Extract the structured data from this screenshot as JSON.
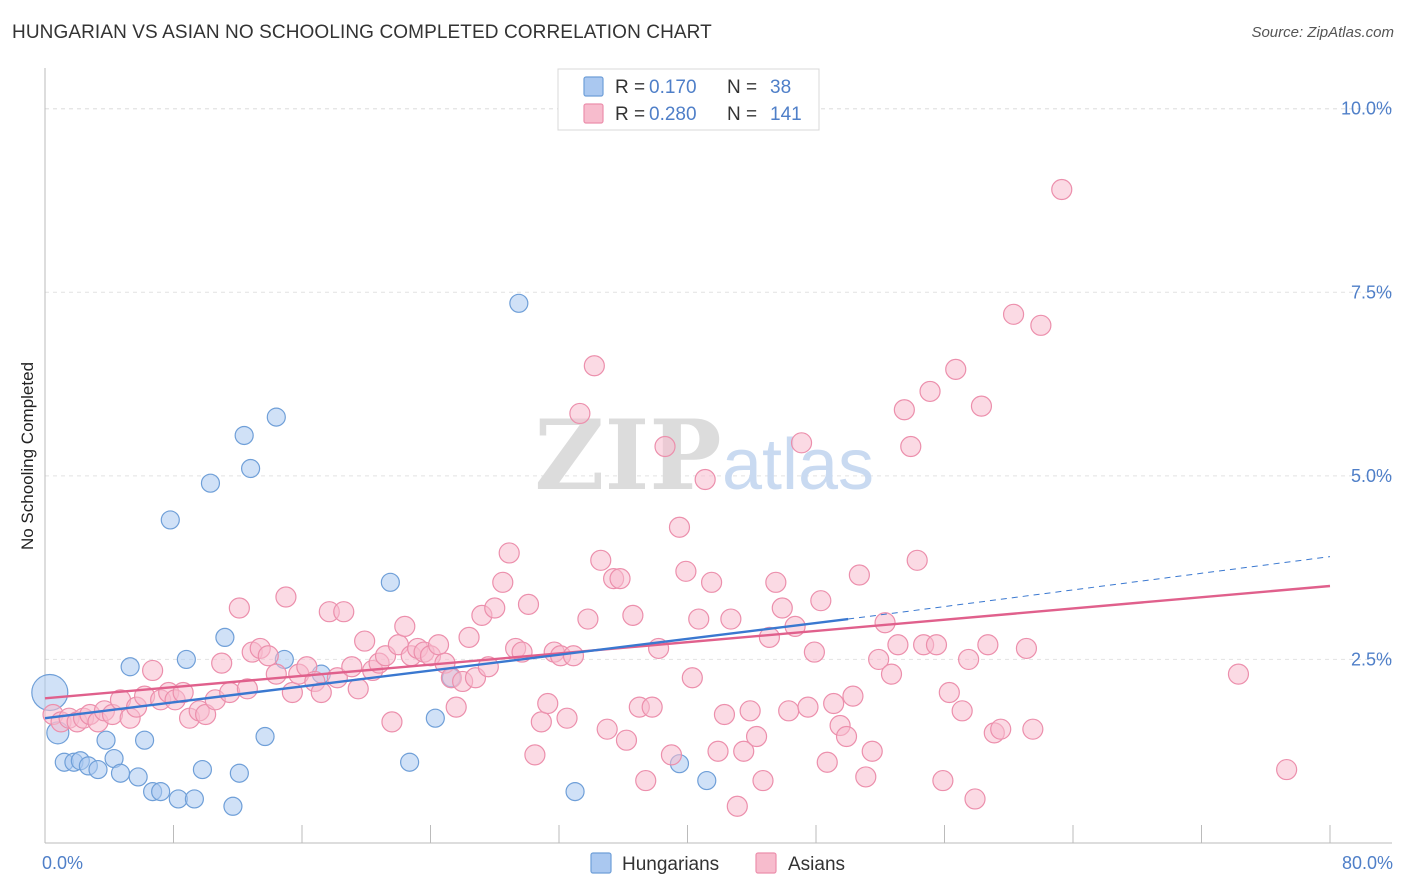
{
  "chart_data": {
    "type": "scatter",
    "title": "HUNGARIAN VS ASIAN NO SCHOOLING COMPLETED CORRELATION CHART",
    "source": "Source: ZipAtlas.com",
    "xlabel": "",
    "ylabel": "No Schooling Completed",
    "xlim": [
      0,
      80
    ],
    "ylim": [
      0,
      10.5
    ],
    "x_tick_labels": [
      "0.0%",
      "80.0%"
    ],
    "y_ticks": [
      2.5,
      5.0,
      7.5,
      10.0
    ],
    "y_tick_labels": [
      "2.5%",
      "5.0%",
      "7.5%",
      "10.0%"
    ],
    "grid": true,
    "watermark": {
      "zip": "ZIP",
      "atlas": "atlas"
    },
    "legend_stats": [
      {
        "r_label": "R = ",
        "r_value": "0.170",
        "n_label": "N = ",
        "n_value": "38"
      },
      {
        "r_label": "R = ",
        "r_value": "0.280",
        "n_label": "N = ",
        "n_value": "141"
      }
    ],
    "colors": {
      "hungarian_fill": "#aac8f0",
      "hungarian_stroke": "#6f9fd8",
      "hungarian_line": "#3a78d0",
      "asian_fill": "#f7bccd",
      "asian_stroke": "#ec8fac",
      "asian_line": "#e0608c",
      "value_text": "#4f7fc8",
      "axis_text": "#4f7fc8"
    },
    "series": [
      {
        "name": "Hungarians",
        "trend": {
          "x0": 0,
          "y0": 1.7,
          "x1": 50,
          "y1": 3.05,
          "dash_to_x": 80,
          "dash_to_y": 3.9
        },
        "points": [
          [
            0.3,
            2.05,
            18
          ],
          [
            0.8,
            1.5,
            11
          ],
          [
            1.2,
            1.1,
            9
          ],
          [
            1.8,
            1.1,
            9
          ],
          [
            2.2,
            1.12,
            9
          ],
          [
            2.7,
            1.05,
            9
          ],
          [
            3.3,
            1.0,
            9
          ],
          [
            3.8,
            1.4,
            9
          ],
          [
            4.3,
            1.15,
            9
          ],
          [
            4.7,
            0.95,
            9
          ],
          [
            5.3,
            2.4,
            9
          ],
          [
            5.8,
            0.9,
            9
          ],
          [
            6.2,
            1.4,
            9
          ],
          [
            6.7,
            0.7,
            9
          ],
          [
            7.2,
            0.7,
            9
          ],
          [
            7.8,
            4.4,
            9
          ],
          [
            8.3,
            0.6,
            9
          ],
          [
            8.8,
            2.5,
            9
          ],
          [
            9.3,
            0.6,
            9
          ],
          [
            9.8,
            1.0,
            9
          ],
          [
            10.3,
            4.9,
            9
          ],
          [
            11.2,
            2.8,
            9
          ],
          [
            11.7,
            0.5,
            9
          ],
          [
            12.1,
            0.95,
            9
          ],
          [
            12.4,
            5.55,
            9
          ],
          [
            12.8,
            5.1,
            9
          ],
          [
            13.7,
            1.45,
            9
          ],
          [
            14.4,
            5.8,
            9
          ],
          [
            14.9,
            2.5,
            9
          ],
          [
            17.2,
            2.3,
            9
          ],
          [
            21.5,
            3.55,
            9
          ],
          [
            22.7,
            1.1,
            9
          ],
          [
            24.3,
            1.7,
            9
          ],
          [
            25.3,
            2.25,
            9
          ],
          [
            29.5,
            7.35,
            9
          ],
          [
            33.0,
            0.7,
            9
          ],
          [
            39.5,
            1.08,
            9
          ],
          [
            41.2,
            0.85,
            9
          ]
        ]
      },
      {
        "name": "Asians",
        "trend": {
          "x0": 0,
          "y0": 1.97,
          "x1": 80,
          "y1": 3.5
        },
        "points": [
          [
            0.5,
            1.75,
            10
          ],
          [
            1.0,
            1.65,
            10
          ],
          [
            1.5,
            1.7,
            10
          ],
          [
            2.0,
            1.65,
            10
          ],
          [
            2.4,
            1.7,
            10
          ],
          [
            2.8,
            1.75,
            10
          ],
          [
            3.3,
            1.65,
            10
          ],
          [
            3.7,
            1.8,
            10
          ],
          [
            4.2,
            1.75,
            10
          ],
          [
            4.7,
            1.95,
            10
          ],
          [
            5.3,
            1.7,
            10
          ],
          [
            5.7,
            1.85,
            10
          ],
          [
            6.2,
            2.0,
            10
          ],
          [
            6.7,
            2.35,
            10
          ],
          [
            7.2,
            1.95,
            10
          ],
          [
            7.7,
            2.05,
            10
          ],
          [
            8.1,
            1.95,
            10
          ],
          [
            8.6,
            2.05,
            10
          ],
          [
            9.0,
            1.7,
            10
          ],
          [
            9.6,
            1.8,
            10
          ],
          [
            10.0,
            1.75,
            10
          ],
          [
            10.6,
            1.95,
            10
          ],
          [
            11.0,
            2.45,
            10
          ],
          [
            11.5,
            2.05,
            10
          ],
          [
            12.1,
            3.2,
            10
          ],
          [
            12.6,
            2.1,
            10
          ],
          [
            12.9,
            2.6,
            10
          ],
          [
            13.4,
            2.65,
            10
          ],
          [
            13.9,
            2.55,
            10
          ],
          [
            14.4,
            2.3,
            10
          ],
          [
            15.0,
            3.35,
            10
          ],
          [
            15.4,
            2.05,
            10
          ],
          [
            15.8,
            2.3,
            10
          ],
          [
            16.3,
            2.4,
            10
          ],
          [
            16.8,
            2.2,
            10
          ],
          [
            17.2,
            2.05,
            10
          ],
          [
            17.7,
            3.15,
            10
          ],
          [
            18.2,
            2.25,
            10
          ],
          [
            18.6,
            3.15,
            10
          ],
          [
            19.1,
            2.4,
            10
          ],
          [
            19.5,
            2.1,
            10
          ],
          [
            19.9,
            2.75,
            10
          ],
          [
            20.4,
            2.35,
            10
          ],
          [
            20.8,
            2.45,
            10
          ],
          [
            21.2,
            2.55,
            10
          ],
          [
            21.6,
            1.65,
            10
          ],
          [
            22.0,
            2.7,
            10
          ],
          [
            22.4,
            2.95,
            10
          ],
          [
            22.8,
            2.55,
            10
          ],
          [
            23.2,
            2.65,
            10
          ],
          [
            23.6,
            2.6,
            10
          ],
          [
            24.0,
            2.55,
            10
          ],
          [
            24.5,
            2.7,
            10
          ],
          [
            24.9,
            2.45,
            10
          ],
          [
            25.3,
            2.25,
            10
          ],
          [
            25.6,
            1.85,
            10
          ],
          [
            26.0,
            2.2,
            10
          ],
          [
            26.4,
            2.8,
            10
          ],
          [
            26.8,
            2.25,
            10
          ],
          [
            27.2,
            3.1,
            10
          ],
          [
            27.6,
            2.4,
            10
          ],
          [
            28.0,
            3.2,
            10
          ],
          [
            28.5,
            3.55,
            10
          ],
          [
            28.9,
            3.95,
            10
          ],
          [
            29.3,
            2.65,
            10
          ],
          [
            29.7,
            2.6,
            10
          ],
          [
            30.1,
            3.25,
            10
          ],
          [
            30.5,
            1.2,
            10
          ],
          [
            30.9,
            1.65,
            10
          ],
          [
            31.3,
            1.9,
            10
          ],
          [
            31.7,
            2.6,
            10
          ],
          [
            32.1,
            2.55,
            10
          ],
          [
            32.5,
            1.7,
            10
          ],
          [
            32.9,
            2.55,
            10
          ],
          [
            33.3,
            5.85,
            10
          ],
          [
            33.8,
            3.05,
            10
          ],
          [
            34.2,
            6.5,
            10
          ],
          [
            34.6,
            3.85,
            10
          ],
          [
            35.0,
            1.55,
            10
          ],
          [
            35.4,
            3.6,
            10
          ],
          [
            35.8,
            3.6,
            10
          ],
          [
            36.2,
            1.4,
            10
          ],
          [
            36.6,
            3.1,
            10
          ],
          [
            37.0,
            1.85,
            10
          ],
          [
            37.4,
            0.85,
            10
          ],
          [
            37.8,
            1.85,
            10
          ],
          [
            38.2,
            2.65,
            10
          ],
          [
            38.6,
            5.4,
            10
          ],
          [
            39.0,
            1.2,
            10
          ],
          [
            39.5,
            4.3,
            10
          ],
          [
            39.9,
            3.7,
            10
          ],
          [
            40.3,
            2.25,
            10
          ],
          [
            40.7,
            3.05,
            10
          ],
          [
            41.1,
            4.95,
            10
          ],
          [
            41.5,
            3.55,
            10
          ],
          [
            41.9,
            1.25,
            10
          ],
          [
            42.3,
            1.75,
            10
          ],
          [
            42.7,
            3.05,
            10
          ],
          [
            43.1,
            0.5,
            10
          ],
          [
            43.5,
            1.25,
            10
          ],
          [
            43.9,
            1.8,
            10
          ],
          [
            44.3,
            1.45,
            10
          ],
          [
            44.7,
            0.85,
            10
          ],
          [
            45.1,
            2.8,
            10
          ],
          [
            45.5,
            3.55,
            10
          ],
          [
            45.9,
            3.2,
            10
          ],
          [
            46.3,
            1.8,
            10
          ],
          [
            46.7,
            2.95,
            10
          ],
          [
            47.1,
            5.45,
            10
          ],
          [
            47.5,
            1.85,
            10
          ],
          [
            47.9,
            2.6,
            10
          ],
          [
            48.3,
            3.3,
            10
          ],
          [
            48.7,
            1.1,
            10
          ],
          [
            49.1,
            1.9,
            10
          ],
          [
            49.5,
            1.6,
            10
          ],
          [
            49.9,
            1.45,
            10
          ],
          [
            50.3,
            2.0,
            10
          ],
          [
            50.7,
            3.65,
            10
          ],
          [
            51.1,
            0.9,
            10
          ],
          [
            51.5,
            1.25,
            10
          ],
          [
            51.9,
            2.5,
            10
          ],
          [
            52.3,
            3.0,
            10
          ],
          [
            52.7,
            2.3,
            10
          ],
          [
            53.1,
            2.7,
            10
          ],
          [
            53.5,
            5.9,
            10
          ],
          [
            53.9,
            5.4,
            10
          ],
          [
            54.3,
            3.85,
            10
          ],
          [
            54.7,
            2.7,
            10
          ],
          [
            55.1,
            6.15,
            10
          ],
          [
            55.5,
            2.7,
            10
          ],
          [
            55.9,
            0.85,
            10
          ],
          [
            56.3,
            2.05,
            10
          ],
          [
            56.7,
            6.45,
            10
          ],
          [
            57.1,
            1.8,
            10
          ],
          [
            57.5,
            2.5,
            10
          ],
          [
            57.9,
            0.6,
            10
          ],
          [
            58.3,
            5.95,
            10
          ],
          [
            58.7,
            2.7,
            10
          ],
          [
            59.1,
            1.5,
            10
          ],
          [
            59.5,
            1.55,
            10
          ],
          [
            60.3,
            7.2,
            10
          ],
          [
            61.1,
            2.65,
            10
          ],
          [
            61.5,
            1.55,
            10
          ],
          [
            62.0,
            7.05,
            10
          ],
          [
            63.3,
            8.9,
            10
          ],
          [
            74.3,
            2.3,
            10
          ],
          [
            77.3,
            1.0,
            10
          ]
        ]
      }
    ]
  }
}
